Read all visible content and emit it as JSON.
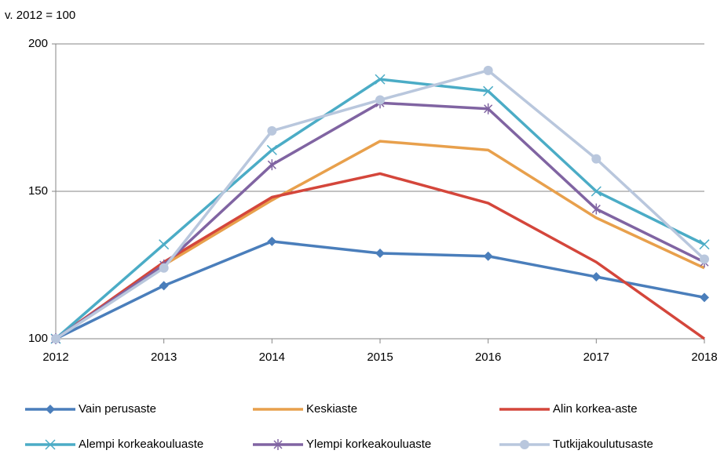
{
  "chart_data": {
    "type": "line",
    "y_label": "v. 2012 = 100",
    "categories": [
      "2012",
      "2013",
      "2014",
      "2015",
      "2016",
      "2017",
      "2018"
    ],
    "ylim": [
      100,
      200
    ],
    "yticks": [
      100,
      150,
      200
    ],
    "grid": true,
    "legend": "bottom",
    "series": [
      {
        "name": "Vain perusaste",
        "color": "#4a7ebb",
        "marker": "diamond",
        "values": [
          100,
          118,
          133,
          129,
          128,
          121,
          114
        ]
      },
      {
        "name": "Keskiaste",
        "color": "#e8a04c",
        "marker": "none",
        "values": [
          100,
          125,
          147,
          167,
          164,
          141,
          124
        ]
      },
      {
        "name": "Alin korkea-aste",
        "color": "#d4463b",
        "marker": "none",
        "values": [
          100,
          126,
          148,
          156,
          146,
          126,
          100
        ]
      },
      {
        "name": "Alempi korkeakouluaste",
        "color": "#4bacc6",
        "marker": "x",
        "values": [
          100,
          132,
          164,
          188,
          184,
          150,
          132
        ]
      },
      {
        "name": "Ylempi korkeakouluaste",
        "color": "#8064a2",
        "marker": "asterisk",
        "values": [
          100,
          125,
          159,
          180,
          178,
          144,
          126
        ]
      },
      {
        "name": "Tutkijakoulutusaste",
        "color": "#b9c7dd",
        "marker": "circle",
        "values": [
          100,
          124,
          170.5,
          181,
          191,
          161,
          127
        ]
      }
    ]
  }
}
